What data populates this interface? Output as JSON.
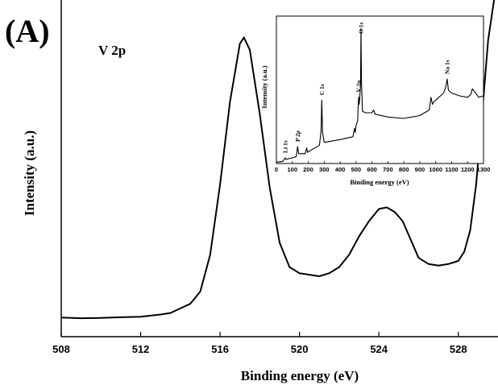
{
  "chart_data": [
    {
      "type": "line",
      "panel_label": "(A)",
      "series_label": "V 2p",
      "xlabel": "Binding energy (eV)",
      "ylabel": "Intensity (a.u.)",
      "xlim": [
        508,
        530
      ],
      "ylim": [
        0,
        1.0
      ],
      "y_tick_labels_shown": false,
      "x_ticks": [
        508,
        512,
        516,
        520,
        524,
        528
      ],
      "x_tick_labels": [
        "508",
        "512",
        "516",
        "520",
        "524",
        "528"
      ],
      "series": [
        {
          "x": [
            508,
            509,
            510,
            511,
            512,
            513,
            513.5,
            514,
            514.5,
            515,
            515.5,
            516,
            516.5,
            517,
            517.2,
            517.5,
            518,
            518.5,
            519,
            519.5,
            520,
            520.5,
            521,
            521.5,
            522,
            522.5,
            523,
            523.5,
            524,
            524.4,
            524.8,
            525.2,
            525.6,
            526,
            526.5,
            527,
            527.5,
            528,
            528.3,
            528.6,
            528.9,
            529.2,
            529.5,
            529.8
          ],
          "y": [
            0.015,
            0.013,
            0.014,
            0.016,
            0.018,
            0.025,
            0.03,
            0.045,
            0.06,
            0.1,
            0.22,
            0.45,
            0.72,
            0.91,
            0.93,
            0.89,
            0.68,
            0.44,
            0.26,
            0.18,
            0.16,
            0.155,
            0.15,
            0.16,
            0.18,
            0.22,
            0.28,
            0.33,
            0.37,
            0.375,
            0.36,
            0.33,
            0.27,
            0.21,
            0.19,
            0.185,
            0.19,
            0.2,
            0.23,
            0.3,
            0.45,
            0.68,
            0.92,
            1.1
          ]
        }
      ]
    },
    {
      "type": "line",
      "subplot": "inset",
      "xlabel": "Binding energy (eV)",
      "ylabel": "Intensity (a.u.)",
      "xlim": [
        0,
        1300
      ],
      "ylim": [
        0,
        1.0
      ],
      "x_ticks": [
        0,
        100,
        200,
        300,
        400,
        500,
        600,
        700,
        800,
        900,
        1000,
        1100,
        1200,
        1300
      ],
      "x_tick_labels": [
        "0",
        "100",
        "200",
        "300",
        "400",
        "500",
        "600",
        "700",
        "800",
        "900",
        "1000",
        "1100",
        "1200",
        "1300"
      ],
      "annotations": [
        {
          "text": "Li 1s",
          "x": 55
        },
        {
          "text": "P 2p",
          "x": 133
        },
        {
          "text": "C 1s",
          "x": 285
        },
        {
          "text": "V 2p",
          "x": 517
        },
        {
          "text": "O 1s",
          "x": 531
        },
        {
          "text": "Na 1s",
          "x": 1072
        }
      ],
      "series": [
        {
          "x": [
            0,
            40,
            55,
            60,
            100,
            125,
            133,
            140,
            180,
            190,
            195,
            270,
            280,
            285,
            290,
            300,
            400,
            480,
            490,
            495,
            500,
            510,
            515,
            517,
            520,
            528,
            531,
            534,
            540,
            560,
            600,
            610,
            620,
            700,
            800,
            900,
            960,
            970,
            980,
            990,
            1000,
            1050,
            1065,
            1072,
            1080,
            1100,
            1150,
            1200,
            1220,
            1230,
            1250,
            1270,
            1300
          ],
          "y": [
            0.01,
            0.015,
            0.04,
            0.03,
            0.04,
            0.05,
            0.12,
            0.07,
            0.07,
            0.11,
            0.08,
            0.13,
            0.23,
            0.45,
            0.22,
            0.15,
            0.17,
            0.19,
            0.25,
            0.22,
            0.27,
            0.3,
            0.45,
            0.47,
            0.42,
            0.55,
            0.96,
            0.58,
            0.37,
            0.36,
            0.36,
            0.38,
            0.35,
            0.33,
            0.32,
            0.34,
            0.38,
            0.47,
            0.42,
            0.44,
            0.45,
            0.5,
            0.55,
            0.6,
            0.52,
            0.5,
            0.48,
            0.47,
            0.49,
            0.53,
            0.5,
            0.47,
            0.48
          ]
        }
      ]
    }
  ]
}
